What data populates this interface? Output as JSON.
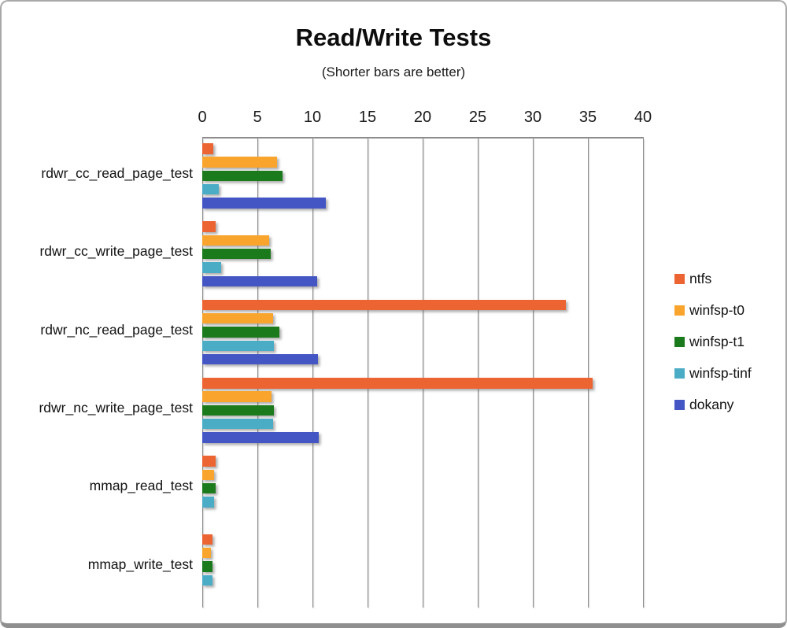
{
  "title": "Read/Write Tests",
  "subtitle": "(Shorter bars are better)",
  "chart_data": {
    "type": "bar",
    "orientation": "horizontal",
    "title": "Read/Write Tests",
    "subtitle": "(Shorter bars are better)",
    "xlabel": "",
    "ylabel": "",
    "xlim": [
      0,
      40
    ],
    "xticks": [
      0,
      5,
      10,
      15,
      20,
      25,
      30,
      35,
      40
    ],
    "grid": "vertical-only",
    "legend_position": "right",
    "grid_color": "#8c8c8c",
    "categories": [
      "rdwr_cc_read_page_test",
      "rdwr_cc_write_page_test",
      "rdwr_nc_read_page_test",
      "rdwr_nc_write_page_test",
      "mmap_read_test",
      "mmap_write_test"
    ],
    "series": [
      {
        "name": "ntfs",
        "color": "#EC6432",
        "values": [
          1.0,
          1.2,
          33.0,
          35.4,
          1.2,
          0.9
        ]
      },
      {
        "name": "winfsp-t0",
        "color": "#F9A42C",
        "values": [
          6.8,
          6.1,
          6.4,
          6.3,
          1.1,
          0.8
        ]
      },
      {
        "name": "winfsp-t1",
        "color": "#1B7A1B",
        "values": [
          7.3,
          6.2,
          7.0,
          6.5,
          1.2,
          0.9
        ]
      },
      {
        "name": "winfsp-tinf",
        "color": "#4BACC6",
        "values": [
          1.5,
          1.7,
          6.5,
          6.4,
          1.1,
          0.9
        ]
      },
      {
        "name": "dokany",
        "color": "#4456C4",
        "values": [
          11.2,
          10.4,
          10.5,
          10.6,
          null,
          null
        ]
      }
    ]
  }
}
